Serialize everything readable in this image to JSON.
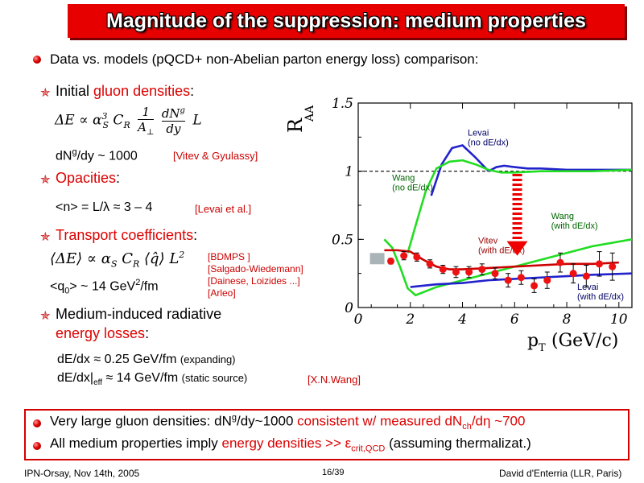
{
  "title": "Magnitude of the suppression: medium properties",
  "intro": "Data vs. models (pQCD+ non-Abelian parton energy loss) comparison:",
  "sections": {
    "gluon": {
      "prefix": "Initial ",
      "highlight": "gluon densities",
      "suffix": ":",
      "formula": "ΔE ∝ α",
      "result_a": "dN",
      "result_sup": "g",
      "result_b": "/dy ~ 1000",
      "ref": "[Vitev & Gyulassy]"
    },
    "opacities": {
      "highlight": "Opacities",
      "suffix": ":",
      "result": "<n> = L/λ ≈ 3 – 4",
      "ref": "[Levai et al.]"
    },
    "transport": {
      "highlight": "Transport coefficients",
      "suffix": ":",
      "result_a": "<q",
      "result_sub": "0",
      "result_b": "> ~ 14 GeV",
      "result_sup": "2",
      "result_c": "/fm",
      "refs": [
        "[BDMPS ]",
        "[Salgado-Wiedemann]",
        "[Dainese, Loizides ...]",
        "[Arleo]"
      ]
    },
    "radiative": {
      "line1": "Medium-induced radiative",
      "highlight": "energy losses",
      "suffix": ":",
      "r1_a": "dE/dx ≈ 0.25 GeV/fm",
      "r1_note": "(expanding)",
      "r2_a": "dE/dx|",
      "r2_sub": "eff",
      "r2_b": " ≈ 14 GeV/fm",
      "r2_note": "(static source)",
      "r2_ref": "[X.N.Wang]"
    }
  },
  "bottom": {
    "line1_a": "Very large gluon densities: dN",
    "line1_sup": "g",
    "line1_b": "/dy~1000 ",
    "line1_red": "consistent w/ measured dN",
    "line1_sub": "ch",
    "line1_red2": "/dη ~700",
    "line2_a": "All medium properties imply ",
    "line2_red": "energy densities >> ε",
    "line2_sub": "crit,QCD",
    "line2_b": " (assuming thermalizat.)"
  },
  "footer": {
    "left": "IPN-Orsay, Nov 14th, 2005",
    "center": "16/39",
    "right": "David d'Enterria (LLR, Paris)"
  },
  "chart_data": {
    "type": "line",
    "ylabel": "R",
    "ylabel_sub": "AA",
    "xlabel": "p",
    "xlabel_sub": "T",
    "xlabel_unit": "(GeV/c)",
    "xlim": [
      0,
      10.5
    ],
    "ylim": [
      0,
      1.5
    ],
    "xticks": [
      "0",
      "2",
      "4",
      "6",
      "8",
      "10"
    ],
    "yticks": [
      "0",
      "0.5",
      "1",
      "1.5"
    ],
    "series": [
      {
        "name": "Levai (no dE/dx)",
        "label_lines": [
          "Levai",
          "(no dE/dx)"
        ],
        "color": "#2222cc",
        "x": [
          5.0,
          5.3,
          5.6,
          6.0,
          6.5,
          7.0,
          8.0,
          9.0,
          10.5
        ],
        "y": [
          1.0,
          1.03,
          1.04,
          1.03,
          1.02,
          1.02,
          1.01,
          1.01,
          1.01
        ]
      },
      {
        "name": "Levai (no dE/dx) low-pT",
        "color": "#2222cc",
        "x": [
          2.8,
          3.2,
          3.6,
          4.0,
          4.5,
          5.0
        ],
        "y": [
          0.82,
          1.05,
          1.17,
          1.19,
          1.1,
          1.0
        ]
      },
      {
        "name": "Wang (no dE/dx)",
        "label_lines": [
          "Wang",
          "(no dE/dx)"
        ],
        "color": "#22dd22",
        "x": [
          1.9,
          2.2,
          2.6,
          3.0,
          3.5,
          4.0,
          4.5,
          5.0,
          5.5,
          6.0,
          7.0,
          8.0,
          9.0,
          10.5
        ],
        "y": [
          0.4,
          0.6,
          0.86,
          1.02,
          1.07,
          1.08,
          1.05,
          1.01,
          0.99,
          0.99,
          1.0,
          1.0,
          1.0,
          1.01
        ]
      },
      {
        "name": "Wang (with dE/dx)",
        "label_lines": [
          "Wang",
          "(with dE/dx)"
        ],
        "color": "#22dd22",
        "x": [
          1.0,
          1.3,
          1.6,
          1.9,
          2.2,
          2.6,
          3.0,
          4.0,
          5.0,
          6.0,
          7.0,
          8.0,
          9.0,
          10.5
        ],
        "y": [
          0.5,
          0.44,
          0.3,
          0.14,
          0.09,
          0.12,
          0.15,
          0.2,
          0.25,
          0.3,
          0.35,
          0.4,
          0.45,
          0.5
        ]
      },
      {
        "name": "Vitev (with dE/dx)",
        "label_lines": [
          "Vitev",
          "(with dE/dx)"
        ],
        "color": "#cc0000",
        "x": [
          1.0,
          1.5,
          2.0,
          2.5,
          3.0,
          3.5,
          4.0,
          5.0,
          6.0,
          7.0,
          8.0,
          9.0,
          10.0
        ],
        "y": [
          0.42,
          0.42,
          0.41,
          0.35,
          0.3,
          0.28,
          0.28,
          0.29,
          0.3,
          0.31,
          0.32,
          0.32,
          0.33
        ]
      },
      {
        "name": "Levai (with dE/dx)",
        "label_lines": [
          "Levai",
          "(with dE/dx)"
        ],
        "color": "#2222cc",
        "x": [
          2.0,
          3.0,
          4.0,
          5.0,
          6.0,
          7.0,
          8.0,
          9.0,
          10.5
        ],
        "y": [
          0.15,
          0.17,
          0.18,
          0.2,
          0.21,
          0.22,
          0.23,
          0.24,
          0.25
        ]
      }
    ],
    "data_points": {
      "name": "Data",
      "color": "#ee1111",
      "x": [
        1.25,
        1.75,
        2.25,
        2.75,
        3.25,
        3.75,
        4.25,
        4.75,
        5.25,
        5.75,
        6.25,
        6.75,
        7.25,
        7.75,
        8.25,
        8.75,
        9.25,
        9.75
      ],
      "y": [
        0.34,
        0.38,
        0.37,
        0.32,
        0.28,
        0.26,
        0.26,
        0.28,
        0.25,
        0.2,
        0.22,
        0.16,
        0.2,
        0.33,
        0.25,
        0.23,
        0.32,
        0.3
      ],
      "err": [
        0.02,
        0.03,
        0.03,
        0.03,
        0.03,
        0.04,
        0.04,
        0.04,
        0.04,
        0.05,
        0.05,
        0.05,
        0.06,
        0.07,
        0.07,
        0.08,
        0.09,
        0.1
      ]
    },
    "reference_line": {
      "y": 1.0,
      "style": "dashed"
    },
    "arrow": {
      "x": 6.1,
      "y_from": 0.98,
      "y_to": 0.38,
      "color": "#ee0000"
    }
  }
}
